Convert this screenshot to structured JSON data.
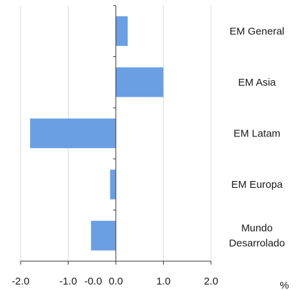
{
  "chart_data": {
    "type": "bar",
    "orientation": "horizontal",
    "categories": [
      [
        "EM General"
      ],
      [
        "EM Asia"
      ],
      [
        "EM Latam"
      ],
      [
        "EM Europa"
      ],
      [
        "Mundo",
        "Desarrolado"
      ]
    ],
    "values": [
      0.25,
      1.0,
      -1.8,
      -0.12,
      -0.52
    ],
    "xlim": [
      -2.0,
      2.0
    ],
    "x_ticks": [
      "-2.0",
      "-1.0",
      "-0.0",
      "0.0",
      "1.0",
      "2.0"
    ],
    "x_tick_values": [
      -2.0,
      -1.0,
      -0.0001,
      0.0,
      1.0,
      2.0
    ],
    "unit_label": "%",
    "grid": "vertical",
    "bar_color": "#6a9fe3",
    "grid_color": "#d9d9d9",
    "axis_color": "#333333"
  }
}
